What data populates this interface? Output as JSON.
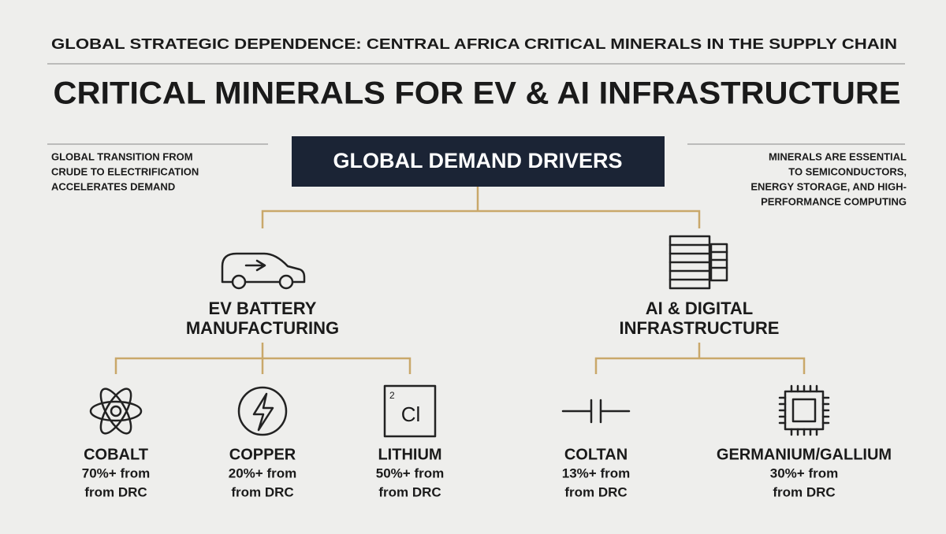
{
  "header": {
    "kicker": "GLOBAL STRATEGIC DEPENDENCE: CENTRAL AFRICA CRITICAL MINERALS IN THE SUPPLY CHAIN",
    "title": "CRITICAL MINERALS FOR EV & AI INFRASTRUCTURE"
  },
  "left_note": [
    "GLOBAL TRANSITION FROM",
    "CRUDE TO ELECTRIFICATION",
    "ACCELERATES DEMAND"
  ],
  "right_note": [
    "MINERALS ARE ESSENTIAL",
    "TO SEMICONDUCTORS,",
    "ENERGY STORAGE, AND HIGH-",
    "PERFORMANCE COMPUTING"
  ],
  "root": {
    "label": "GLOBAL DEMAND DRIVERS"
  },
  "branches": [
    {
      "label": [
        "EV BATTERY",
        "MANUFACTURING"
      ],
      "minerals": [
        {
          "name": "COBALT",
          "lines": [
            "70%+ from",
            "from DRC"
          ]
        },
        {
          "name": "COPPER",
          "lines": [
            "20%+ from",
            "from DRC"
          ]
        },
        {
          "name": "LITHIUM",
          "lines": [
            "50%+ from",
            "from DRC"
          ],
          "icon": {
            "number": "2",
            "symbol": "Cl"
          }
        }
      ]
    },
    {
      "label": [
        "AI & DIGITAL",
        "INFRASTRUCTURE"
      ],
      "minerals": [
        {
          "name": "COLTAN",
          "lines": [
            "13%+ from",
            "from DRC"
          ]
        },
        {
          "name": "GERMANIUM/GALLIUM",
          "lines": [
            "30%+ from",
            "from DRC"
          ]
        }
      ]
    }
  ]
}
